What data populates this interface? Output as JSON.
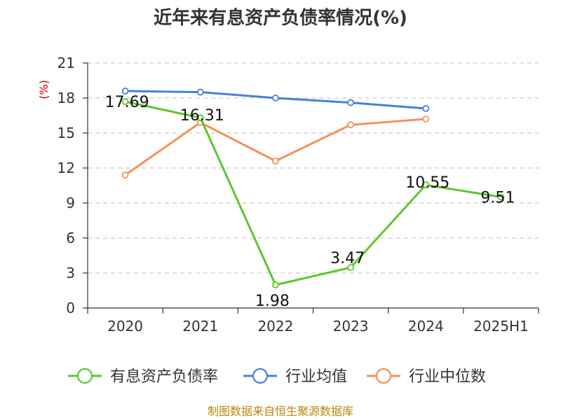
{
  "chart_data": {
    "type": "line",
    "title": "近年来有息资产负债率情况(%)",
    "ylabel": "(%)",
    "categories": [
      "2020",
      "2021",
      "2022",
      "2023",
      "2024",
      "2025H1"
    ],
    "ylim": [
      0,
      21
    ],
    "yticks": [
      0,
      3,
      6,
      9,
      12,
      15,
      18,
      21
    ],
    "grid": true,
    "legend_position": "bottom",
    "series": [
      {
        "name": "有息资产负债率",
        "color": "#5bc72b",
        "values": [
          17.69,
          16.31,
          1.98,
          3.47,
          10.55,
          9.51
        ],
        "labels": [
          "17.69",
          "16.31",
          "1.98",
          "3.47",
          "10.55",
          "9.51"
        ]
      },
      {
        "name": "行业均值",
        "color": "#4a7fd9",
        "values": [
          18.6,
          18.5,
          18.0,
          17.6,
          17.1,
          null
        ]
      },
      {
        "name": "行业中位数",
        "color": "#f5905a",
        "values": [
          11.4,
          15.9,
          12.6,
          15.7,
          16.2,
          null
        ]
      }
    ]
  },
  "footer": {
    "source": "制图数据来自恒生聚源数据库",
    "source_color": "#b8860b"
  },
  "colors": {
    "grid": "#cccccc",
    "axis": "#333333",
    "unit": "#cc0000"
  }
}
